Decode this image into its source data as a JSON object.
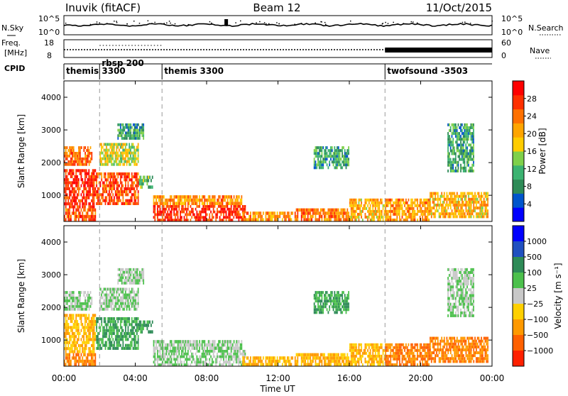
{
  "header": {
    "station": "Inuvik (fitACF)",
    "beam": "Beam 12",
    "date": "11/Oct/2015"
  },
  "noise_panel": {
    "left_label": "N.Sky",
    "right_label": "N.Search",
    "left_ticks": [
      "10^5",
      "10^0"
    ],
    "right_ticks": [
      "10^5",
      "10^0"
    ]
  },
  "freq_panel": {
    "left_label_1": "Freq.",
    "left_label_2": "[MHz]",
    "right_label": "Nave",
    "left_ticks": [
      "18",
      "8"
    ],
    "right_ticks": [
      "60",
      "0"
    ]
  },
  "cpid": {
    "label": "CPID",
    "segments": [
      {
        "start_hour": 0.0,
        "label": "themis 3300"
      },
      {
        "start_hour": 2.0,
        "label": "rbsp 200"
      },
      {
        "start_hour": 5.5,
        "label": "themis 3300"
      },
      {
        "start_hour": 18.0,
        "label": "twofsound -3503"
      }
    ]
  },
  "x_axis": {
    "label": "Time UT",
    "range_hours": [
      0,
      24
    ],
    "ticks": [
      "00:00",
      "04:00",
      "08:00",
      "12:00",
      "16:00",
      "20:00",
      "00:00"
    ]
  },
  "y_axis": {
    "label": "Slant Range [km]",
    "range_km": [
      200,
      4500
    ],
    "ticks": [
      "1000",
      "2000",
      "3000",
      "4000"
    ]
  },
  "power_colorbar": {
    "label": "Power [dB]",
    "ticks": [
      "4",
      "8",
      "12",
      "16",
      "20",
      "24",
      "28"
    ],
    "range": [
      0,
      32
    ],
    "colors": [
      "#0000ff",
      "#0055cc",
      "#2e8b57",
      "#3cb371",
      "#7fd04a",
      "#ffcc00",
      "#ffa500",
      "#ff7000",
      "#ff3000",
      "#ff0000"
    ]
  },
  "velocity_colorbar": {
    "label": "Velocity [m s⁻¹]",
    "ticks": [
      "1000",
      "500",
      "100",
      "25",
      "−25",
      "−100",
      "−500",
      "−1000"
    ],
    "colors": [
      "#0000ff",
      "#2050c0",
      "#2e8b57",
      "#4cc04c",
      "#c8c8c8",
      "#ffd000",
      "#ff9900",
      "#ff6000",
      "#ff2000"
    ]
  },
  "chart_data": {
    "type": "heatmap",
    "panels": [
      "Power",
      "Velocity"
    ],
    "regions": [
      {
        "t": [
          0.0,
          1.6
        ],
        "r": [
          1900,
          2500
        ],
        "power": 24,
        "velocity": 25
      },
      {
        "t": [
          0.0,
          1.8
        ],
        "r": [
          600,
          1800
        ],
        "power": 28,
        "velocity": -100
      },
      {
        "t": [
          0.0,
          1.8
        ],
        "r": [
          200,
          600
        ],
        "power": 26,
        "velocity": -500
      },
      {
        "t": [
          1.8,
          4.2
        ],
        "r": [
          700,
          1700
        ],
        "power": 26,
        "velocity": 100
      },
      {
        "t": [
          2.0,
          4.2
        ],
        "r": [
          1900,
          2600
        ],
        "power": 16,
        "velocity": 25
      },
      {
        "t": [
          4.2,
          5.0
        ],
        "r": [
          1200,
          1600
        ],
        "power": 12,
        "velocity": 100
      },
      {
        "t": [
          3.0,
          4.5
        ],
        "r": [
          2700,
          3200
        ],
        "power": 10,
        "velocity": 25
      },
      {
        "t": [
          5.0,
          10.2
        ],
        "r": [
          200,
          700
        ],
        "power": 28,
        "velocity": 25
      },
      {
        "t": [
          5.0,
          10.0
        ],
        "r": [
          700,
          1000
        ],
        "power": 22,
        "velocity": 25
      },
      {
        "t": [
          10.0,
          13.0
        ],
        "r": [
          200,
          500
        ],
        "power": 22,
        "velocity": -100
      },
      {
        "t": [
          13.0,
          16.0
        ],
        "r": [
          200,
          600
        ],
        "power": 24,
        "velocity": -100
      },
      {
        "t": [
          16.0,
          18.0
        ],
        "r": [
          200,
          900
        ],
        "power": 20,
        "velocity": -100
      },
      {
        "t": [
          18.0,
          20.5
        ],
        "r": [
          200,
          900
        ],
        "power": 22,
        "velocity": -500
      },
      {
        "t": [
          20.5,
          23.8
        ],
        "r": [
          300,
          1100
        ],
        "power": 20,
        "velocity": -500
      },
      {
        "t": [
          21.5,
          23.0
        ],
        "r": [
          1700,
          3200
        ],
        "power": 10,
        "velocity": 25
      },
      {
        "t": [
          14.0,
          16.0
        ],
        "r": [
          1800,
          2500
        ],
        "power": 10,
        "velocity": 100
      }
    ]
  }
}
